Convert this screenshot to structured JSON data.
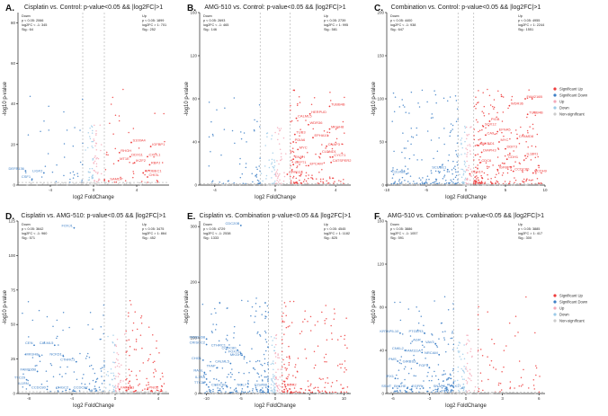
{
  "colors": {
    "sig_up": "#ee3b3b",
    "sig_down": "#3d7fc6",
    "up": "#f4a9b8",
    "down": "#9ccae8",
    "nonsig": "#cccccc"
  },
  "legend": {
    "items": [
      {
        "label": "Significant Up",
        "key": "sig_up"
      },
      {
        "label": "Significant Down",
        "key": "sig_down"
      },
      {
        "label": "Up",
        "key": "up"
      },
      {
        "label": "Down",
        "key": "down"
      },
      {
        "label": "Non-significant",
        "key": "nonsig"
      }
    ]
  },
  "chart_data": [
    {
      "type": "scatter",
      "panel": "A.",
      "title": "Cisplatin vs. Control: p-value<0.05 && |log2FC|>1",
      "xlabel": "log2 FoldChange",
      "ylabel": "-log10 p-value",
      "xlim": [
        -7,
        7
      ],
      "xticks": [
        -4,
        0,
        4
      ],
      "ylim": [
        0,
        85
      ],
      "yticks": [
        0,
        20,
        40,
        60,
        80
      ],
      "down_stats": [
        "Down",
        "p < 0.05: 2066",
        "log2FC < -1: 345",
        "Sig.: 64"
      ],
      "up_stats": [
        "Up",
        "p < 0.05: 1899",
        "log2FC > 1: 701",
        "Sig.: 252"
      ],
      "density": {
        "down": 45,
        "up": 50
      },
      "genes": [
        {
          "name": "S100A4",
          "x": 3.5,
          "y": 21
        },
        {
          "name": "IGFBP1",
          "x": 5.3,
          "y": 19
        },
        {
          "name": "RHGH",
          "x": 2.4,
          "y": 16
        },
        {
          "name": "DDX11",
          "x": 3.4,
          "y": 14
        },
        {
          "name": "CXCL1",
          "x": 5.0,
          "y": 14
        },
        {
          "name": "MT1E",
          "x": 2.3,
          "y": 12
        },
        {
          "name": "IKZF2",
          "x": 3.8,
          "y": 11
        },
        {
          "name": "RBPJ",
          "x": 5.2,
          "y": 10
        },
        {
          "name": "APOBEC1",
          "x": 4.6,
          "y": 6
        },
        {
          "name": "CHI3L",
          "x": 5.0,
          "y": 4
        },
        {
          "name": "SAMDP",
          "x": 1.4,
          "y": 2
        },
        {
          "name": "DEFB136",
          "x": -6.3,
          "y": 7
        },
        {
          "name": "LIGF2",
          "x": -4.6,
          "y": 6
        },
        {
          "name": "CSF1",
          "x": -5.7,
          "y": 3
        }
      ]
    },
    {
      "type": "scatter",
      "panel": "B.",
      "title": "AMG-510 vs. Control: p-value<0.05 && |log2FC|>1",
      "xlabel": "log2 FoldChange",
      "ylabel": "-log10 p-value",
      "xlim": [
        -5,
        5
      ],
      "xticks": [
        -4,
        0,
        4
      ],
      "ylim": [
        0,
        160
      ],
      "yticks": [
        0,
        40,
        80,
        120,
        160
      ],
      "down_stats": [
        "Down",
        "p < 0.05: 2693",
        "log2FC < -1: 465",
        "Sig.: 146"
      ],
      "up_stats": [
        "Up",
        "p < 0.05: 2739",
        "log2FC > 1: 995",
        "Sig.: 581"
      ],
      "density": {
        "down": 70,
        "up": 140
      },
      "genes": [
        {
          "name": "TUBB4B",
          "x": 3.6,
          "y": 73
        },
        {
          "name": "HERPUD",
          "x": 2.3,
          "y": 66
        },
        {
          "name": "CALML5",
          "x": 1.4,
          "y": 62
        },
        {
          "name": "WDR36",
          "x": 2.2,
          "y": 56
        },
        {
          "name": "MKGH8",
          "x": 3.6,
          "y": 52
        },
        {
          "name": "TUB3",
          "x": 1.3,
          "y": 47
        },
        {
          "name": "EPHA10",
          "x": 2.5,
          "y": 44
        },
        {
          "name": "PDIA6",
          "x": 1.2,
          "y": 40
        },
        {
          "name": "CNAP3",
          "x": 3.4,
          "y": 36
        },
        {
          "name": "MYC",
          "x": 1.5,
          "y": 33
        },
        {
          "name": "CLDND1",
          "x": 3.0,
          "y": 29
        },
        {
          "name": "CYCT1",
          "x": 3.8,
          "y": 26
        },
        {
          "name": "ENAH",
          "x": 1.2,
          "y": 24
        },
        {
          "name": "CATSPER2",
          "x": 3.7,
          "y": 21
        },
        {
          "name": "GFPT1",
          "x": 1.2,
          "y": 19
        },
        {
          "name": "EPCAM",
          "x": 2.2,
          "y": 18
        },
        {
          "name": "CPPED1",
          "x": 0.8,
          "y": 10
        }
      ]
    },
    {
      "type": "scatter",
      "panel": "C.",
      "title": "Combination vs. Control: p-value<0.05 && |log2FC|>1",
      "xlabel": "log2 FoldChange",
      "ylabel": "-log10 p-value",
      "xlim": [
        -10,
        10
      ],
      "xticks": [
        -10,
        -5,
        0,
        5,
        10
      ],
      "ylim": [
        0,
        200
      ],
      "yticks": [
        0,
        50,
        100,
        150,
        200
      ],
      "down_stats": [
        "Down",
        "p < 0.05: 4400",
        "log2FC < -1: 938",
        "Sig.: 647"
      ],
      "up_stats": [
        "Up",
        "p < 0.05: 4955",
        "log2FC > 1: 2244",
        "Sig.: 1551"
      ],
      "density": {
        "down": 180,
        "up": 260
      },
      "genes": [
        {
          "name": "FAM216B",
          "x": 7.5,
          "y": 100
        },
        {
          "name": "WDR36",
          "x": 5.5,
          "y": 92
        },
        {
          "name": "TUBB4B",
          "x": 7.8,
          "y": 82
        },
        {
          "name": "PIGB",
          "x": 3.0,
          "y": 74
        },
        {
          "name": "SOX12",
          "x": 2.2,
          "y": 68
        },
        {
          "name": "EFNA5",
          "x": 4.0,
          "y": 62
        },
        {
          "name": "CA9",
          "x": 2.5,
          "y": 58
        },
        {
          "name": "CPAMD8",
          "x": 6.5,
          "y": 54
        },
        {
          "name": "MYC",
          "x": 4.2,
          "y": 50
        },
        {
          "name": "ANKRD1",
          "x": 1.6,
          "y": 46
        },
        {
          "name": "DDIT3",
          "x": 5.0,
          "y": 42
        },
        {
          "name": "DIAPH3",
          "x": 2.0,
          "y": 38
        },
        {
          "name": "IL18R1",
          "x": 7.5,
          "y": 34
        },
        {
          "name": "CDH1",
          "x": 5.2,
          "y": 30
        },
        {
          "name": "CDC6",
          "x": 1.8,
          "y": 26
        },
        {
          "name": "IGFBP5",
          "x": 4.0,
          "y": 18
        },
        {
          "name": "CCDC80",
          "x": 6.0,
          "y": 16
        },
        {
          "name": "PCDH9",
          "x": 8.5,
          "y": 14
        },
        {
          "name": "SCUBE1",
          "x": -2.3,
          "y": 18
        },
        {
          "name": "C2orf88",
          "x": -7.5,
          "y": 13
        },
        {
          "name": "CDH1",
          "x": 0.5,
          "y": 13
        }
      ]
    },
    {
      "type": "scatter",
      "panel": "D.",
      "title": "Cisplatin vs. AMG-510: p-value<0.05 && |log2FC|>1",
      "xlabel": "log2 FoldChange",
      "ylabel": "-log10 p-value",
      "xlim": [
        -9,
        5
      ],
      "xticks": [
        -8,
        -4,
        0,
        4
      ],
      "ylim": [
        0,
        125
      ],
      "yticks": [
        0,
        25,
        50,
        75,
        100,
        125
      ],
      "down_stats": [
        "Down",
        "p < 0.05: 3642",
        "log2FC < -1: 960",
        "Sig.: 571"
      ],
      "up_stats": [
        "Up",
        "p < 0.05: 3475",
        "log2FC > 1: 864",
        "Sig.: 452"
      ],
      "density": {
        "down": 130,
        "up": 110
      },
      "genes": [
        {
          "name": "FOXJ1",
          "x": -3.8,
          "y": 120
        },
        {
          "name": "CEN",
          "x": -7.5,
          "y": 35
        },
        {
          "name": "CALML5",
          "x": -5.6,
          "y": 35
        },
        {
          "name": "MKGH8",
          "x": -7.0,
          "y": 27
        },
        {
          "name": "NCKD1",
          "x": -4.8,
          "y": 27
        },
        {
          "name": "CTHRC1",
          "x": -3.6,
          "y": 23
        },
        {
          "name": "FAM216B",
          "x": -7.2,
          "y": 16
        },
        {
          "name": "TTC29",
          "x": -8.2,
          "y": 10
        },
        {
          "name": "IL1RN",
          "x": -7.9,
          "y": 6
        },
        {
          "name": "CCDC80",
          "x": -6.3,
          "y": 3
        },
        {
          "name": "CHGC2",
          "x": -4.2,
          "y": 3
        },
        {
          "name": "CCDC87",
          "x": -2.4,
          "y": 3
        },
        {
          "name": "FAM163",
          "x": 0.4,
          "y": 3
        },
        {
          "name": "PNO2",
          "x": 3.0,
          "y": 3
        }
      ]
    },
    {
      "type": "scatter",
      "panel": "E.",
      "title": "Cisplatin vs. Combination p-value<0.05 && |log2FC|>1",
      "xlabel": "log2 FoldChange",
      "ylabel": "-log10 p-value",
      "xlim": [
        -11,
        11
      ],
      "xticks": [
        -10,
        -5,
        0,
        5,
        10
      ],
      "ylim": [
        0,
        310
      ],
      "yticks": [
        0,
        100,
        200,
        300
      ],
      "down_stats": [
        "Down",
        "p < 0.05: 4729",
        "log2FC < -1: 2538",
        "Sig.: 1333"
      ],
      "up_stats": [
        "Up",
        "p < 0.05: 4545",
        "log2FC > 1: 1182",
        "Sig.: 825"
      ],
      "density": {
        "down": 230,
        "up": 190
      },
      "genes": [
        {
          "name": "CDC20B",
          "x": -5.0,
          "y": 302
        },
        {
          "name": "FAM216B",
          "x": -10.0,
          "y": 98
        },
        {
          "name": "CRISCC2",
          "x": -10.0,
          "y": 88
        },
        {
          "name": "CTHRC1",
          "x": -7.0,
          "y": 83
        },
        {
          "name": "CCDC80",
          "x": -5.5,
          "y": 78
        },
        {
          "name": "FOXJ1",
          "x": -5.0,
          "y": 72
        },
        {
          "name": "MKGH8",
          "x": -4.5,
          "y": 66
        },
        {
          "name": "CHI3L",
          "x": -10.5,
          "y": 60
        },
        {
          "name": "CALML5",
          "x": -6.5,
          "y": 54
        },
        {
          "name": "TFAP",
          "x": -8.5,
          "y": 46
        },
        {
          "name": "RASL",
          "x": -10.3,
          "y": 38
        },
        {
          "name": "IL1RA",
          "x": -10.0,
          "y": 26
        },
        {
          "name": "TTC29",
          "x": -10.0,
          "y": 16
        },
        {
          "name": "CCDC87",
          "x": -7.0,
          "y": 12
        },
        {
          "name": "NOL7",
          "x": -4.0,
          "y": 12
        },
        {
          "name": "C2orf88",
          "x": -1.0,
          "y": 12
        },
        {
          "name": "SOX2",
          "x": 1.5,
          "y": 12
        }
      ]
    },
    {
      "type": "scatter",
      "panel": "F.",
      "title": "AMG-510 vs. Combination: p-value<0.05 && |log2FC|>1",
      "xlabel": "log2 FoldChange",
      "ylabel": "-log10 p-value",
      "xlim": [
        -6.5,
        6.5
      ],
      "xticks": [
        -6,
        -3,
        0,
        3,
        6
      ],
      "ylim": [
        0,
        160
      ],
      "yticks": [
        0,
        40,
        80,
        120,
        160
      ],
      "down_stats": [
        "Down",
        "p < 0.05: 3886",
        "log2FC < -1: 1057",
        "Sig.: 591"
      ],
      "up_stats": [
        "Up",
        "p < 0.05: 3885",
        "log2FC > 1: 417",
        "Sig.: 300"
      ],
      "density": {
        "down": 180,
        "up": 60
      },
      "genes": [
        {
          "name": "KRTAP5-10",
          "x": -5.4,
          "y": 56
        },
        {
          "name": "PTGER3",
          "x": -3.4,
          "y": 56
        },
        {
          "name": "AGR",
          "x": -3.6,
          "y": 48
        },
        {
          "name": "VAV3",
          "x": -2.5,
          "y": 46
        },
        {
          "name": "CNKL2",
          "x": -5.0,
          "y": 40
        },
        {
          "name": "FAM111A",
          "x": -3.6,
          "y": 38
        },
        {
          "name": "NRCAM",
          "x": -2.2,
          "y": 36
        },
        {
          "name": "PMS",
          "x": -5.6,
          "y": 30
        },
        {
          "name": "GIRBS3",
          "x": -4.0,
          "y": 28
        },
        {
          "name": "FGF3",
          "x": -3.0,
          "y": 24
        },
        {
          "name": "IRX1",
          "x": -5.8,
          "y": 14
        },
        {
          "name": "EGFR",
          "x": -3.5,
          "y": 5
        },
        {
          "name": "SNAP3",
          "x": -1.6,
          "y": 5
        },
        {
          "name": "TBX17",
          "x": -0.3,
          "y": 5
        },
        {
          "name": "SSMT",
          "x": -6.0,
          "y": 5
        },
        {
          "name": "BHLHE",
          "x": -4.8,
          "y": 5
        }
      ]
    }
  ]
}
